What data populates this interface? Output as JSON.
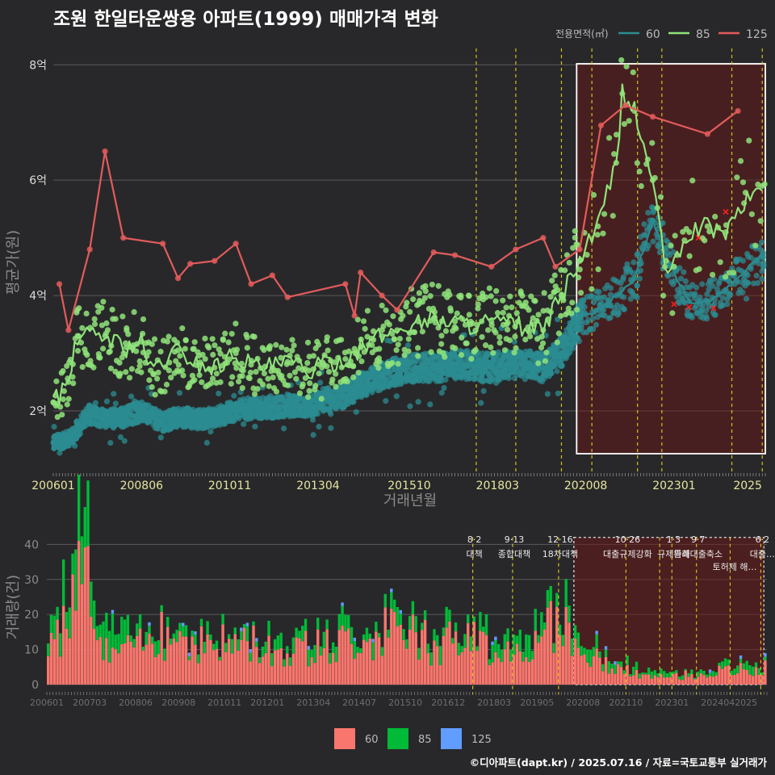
{
  "title": "조원 한일타운쌍용 아파트(1999) 매매가격 변화",
  "footer": "©디아파트(dapt.kr) / 2025.07.16 / 자료=국토교통부 실거래가",
  "colors": {
    "background": "#28282a",
    "s60": "#2b8c91",
    "s85": "#8fe37a",
    "s125": "#e35b5b",
    "vol60": "#f8766d",
    "vol85": "#00ba38",
    "vol125": "#619cff",
    "event_line": "#d4c21e",
    "highlight": "#ffffff"
  },
  "chart_data": [
    {
      "type": "line",
      "title": "조원 한일타운쌍용 아파트(1999) 매매가격 변화",
      "xlabel": "거래년월",
      "ylabel": "평균가(원)",
      "x_ticks": [
        "200601",
        "200806",
        "201011",
        "201304",
        "201510",
        "201803",
        "202008",
        "202301",
        "2025"
      ],
      "y_ticks": [
        "2억",
        "4억",
        "6억",
        "8억"
      ],
      "ylim": [
        0.95,
        8.2
      ],
      "y_unit": "억",
      "legend": {
        "title": "전용면적(㎡)",
        "entries": [
          "60",
          "85",
          "125"
        ],
        "position": "top-right"
      },
      "grid": true,
      "event_lines": [
        "2017-08",
        "2018-09",
        "2019-12",
        "2020-10",
        "2022-01",
        "2022-09",
        "2024-08",
        "2025-06"
      ],
      "highlight_period": [
        "2020-05",
        "2025-07"
      ],
      "series": [
        {
          "name": "60",
          "points": [
            [
              "2006-01",
              1.45
            ],
            [
              "2006-06",
              1.5
            ],
            [
              "2007-01",
              1.95
            ],
            [
              "2007-06",
              1.85
            ],
            [
              "2008-01",
              1.9
            ],
            [
              "2008-06",
              2.0
            ],
            [
              "2009-01",
              1.8
            ],
            [
              "2009-06",
              1.9
            ],
            [
              "2010-01",
              1.85
            ],
            [
              "2010-06",
              1.9
            ],
            [
              "2011-01",
              2.0
            ],
            [
              "2011-06",
              2.05
            ],
            [
              "2012-01",
              2.05
            ],
            [
              "2012-06",
              2.1
            ],
            [
              "2013-01",
              2.05
            ],
            [
              "2013-06",
              2.2
            ],
            [
              "2014-01",
              2.25
            ],
            [
              "2014-06",
              2.45
            ],
            [
              "2015-01",
              2.6
            ],
            [
              "2015-06",
              2.7
            ],
            [
              "2016-01",
              2.75
            ],
            [
              "2016-06",
              2.75
            ],
            [
              "2017-01",
              2.8
            ],
            [
              "2017-06",
              2.8
            ],
            [
              "2018-01",
              2.75
            ],
            [
              "2018-06",
              2.8
            ],
            [
              "2019-01",
              2.8
            ],
            [
              "2019-06",
              2.75
            ],
            [
              "2019-12",
              3.0
            ],
            [
              "2020-06",
              3.6
            ],
            [
              "2020-12",
              3.75
            ],
            [
              "2021-06",
              4.0
            ],
            [
              "2021-12",
              4.3
            ],
            [
              "2022-06",
              5.3
            ],
            [
              "2022-12",
              4.5
            ],
            [
              "2023-06",
              3.9
            ],
            [
              "2023-12",
              3.9
            ],
            [
              "2024-06",
              4.1
            ],
            [
              "2024-12",
              4.4
            ],
            [
              "2025-06",
              4.7
            ]
          ]
        },
        {
          "name": "85",
          "points": [
            [
              "2006-01",
              2.15
            ],
            [
              "2006-06",
              2.5
            ],
            [
              "2006-09",
              3.3
            ],
            [
              "2007-06",
              3.3
            ],
            [
              "2008-01",
              3.1
            ],
            [
              "2008-06",
              3.2
            ],
            [
              "2008-09",
              2.7
            ],
            [
              "2009-06",
              3.05
            ],
            [
              "2010-01",
              2.8
            ],
            [
              "2010-06",
              2.75
            ],
            [
              "2011-01",
              3.0
            ],
            [
              "2011-06",
              2.8
            ],
            [
              "2012-01",
              2.75
            ],
            [
              "2012-06",
              2.85
            ],
            [
              "2013-01",
              2.7
            ],
            [
              "2013-06",
              2.8
            ],
            [
              "2014-01",
              2.9
            ],
            [
              "2014-06",
              3.1
            ],
            [
              "2015-01",
              3.3
            ],
            [
              "2015-06",
              3.4
            ],
            [
              "2016-01",
              3.55
            ],
            [
              "2016-06",
              3.6
            ],
            [
              "2017-01",
              3.55
            ],
            [
              "2017-06",
              3.5
            ],
            [
              "2018-01",
              3.55
            ],
            [
              "2018-06",
              3.5
            ],
            [
              "2019-01",
              3.45
            ],
            [
              "2019-06",
              3.4
            ],
            [
              "2019-12",
              4.0
            ],
            [
              "2020-06",
              4.6
            ],
            [
              "2020-12",
              5.2
            ],
            [
              "2021-06",
              6.3
            ],
            [
              "2021-08",
              7.5
            ],
            [
              "2021-12",
              7.2
            ],
            [
              "2022-06",
              6.0
            ],
            [
              "2022-10",
              4.5
            ],
            [
              "2023-01",
              4.5
            ],
            [
              "2023-06",
              5.1
            ],
            [
              "2023-12",
              5.2
            ],
            [
              "2024-06",
              5.1
            ],
            [
              "2024-12",
              5.6
            ],
            [
              "2025-06",
              5.9
            ]
          ]
        },
        {
          "name": "125",
          "points": [
            [
              "2006-03",
              4.2
            ],
            [
              "2006-06",
              3.4
            ],
            [
              "2007-01",
              4.8
            ],
            [
              "2007-06",
              6.5
            ],
            [
              "2007-12",
              5.0
            ],
            [
              "2009-01",
              4.9
            ],
            [
              "2009-06",
              4.3
            ],
            [
              "2009-10",
              4.55
            ],
            [
              "2010-06",
              4.6
            ],
            [
              "2011-01",
              4.9
            ],
            [
              "2011-06",
              4.2
            ],
            [
              "2012-01",
              4.35
            ],
            [
              "2012-06",
              3.97
            ],
            [
              "2014-01",
              4.2
            ],
            [
              "2014-04",
              3.65
            ],
            [
              "2014-06",
              4.4
            ],
            [
              "2015-01",
              4.0
            ],
            [
              "2015-06",
              3.75
            ],
            [
              "2016-06",
              4.75
            ],
            [
              "2017-01",
              4.7
            ],
            [
              "2018-01",
              4.5
            ],
            [
              "2018-09",
              4.8
            ],
            [
              "2019-06",
              5.0
            ],
            [
              "2019-10",
              4.5
            ],
            [
              "2020-06",
              4.8
            ],
            [
              "2021-01",
              6.95
            ],
            [
              "2021-09",
              7.3
            ],
            [
              "2022-06",
              7.1
            ],
            [
              "2023-12",
              6.8
            ],
            [
              "2024-10",
              7.2
            ]
          ]
        }
      ]
    },
    {
      "type": "bar",
      "stacked": true,
      "xlabel": "",
      "ylabel": "거래량(건)",
      "x_ticks": [
        "200601",
        "200703",
        "200806",
        "200908",
        "201011",
        "201201",
        "201304",
        "201407",
        "201510",
        "201612",
        "201803",
        "201905",
        "202008",
        "202110",
        "202301",
        "202404",
        "2025"
      ],
      "y_ticks": [
        "0",
        "10",
        "20",
        "30",
        "40"
      ],
      "ylim": [
        0,
        44
      ],
      "legend": {
        "entries": [
          "60",
          "85",
          "125"
        ],
        "position": "bottom"
      },
      "events": [
        {
          "date": "2017-08",
          "label": "8·2 대책"
        },
        {
          "date": "2018-09",
          "label": "9·13 종합대책"
        },
        {
          "date": "2019-12",
          "label": "12·16 18차대책"
        },
        {
          "date": "2021-10",
          "label": "10·26 대출규제강화"
        },
        {
          "date": "2023-01",
          "label": "1·3 규제완화"
        },
        {
          "date": "2023-09",
          "label": "9·7 특례대출축소"
        },
        {
          "date": "2025-06",
          "label": "6·2 대출…"
        }
      ],
      "event_extra_labels": [
        "토허제 해…"
      ],
      "series": [
        {
          "name": "60",
          "values_summary": [
            [
              "2006-01",
              8
            ],
            [
              "2006-06",
              20
            ],
            [
              "2006-11",
              41
            ],
            [
              "2007-06",
              10
            ],
            [
              "2008-06",
              11
            ],
            [
              "2009-06",
              16
            ],
            [
              "2010-06",
              12
            ],
            [
              "2011-06",
              13
            ],
            [
              "2012-06",
              10
            ],
            [
              "2013-06",
              11
            ],
            [
              "2014-06",
              14
            ],
            [
              "2015-06",
              17
            ],
            [
              "2016-06",
              12
            ],
            [
              "2017-06",
              13
            ],
            [
              "2018-06",
              11
            ],
            [
              "2019-06",
              12
            ],
            [
              "2019-12",
              22
            ],
            [
              "2020-06",
              10
            ],
            [
              "2021-06",
              5
            ],
            [
              "2022-06",
              2
            ],
            [
              "2023-06",
              3
            ],
            [
              "2024-06",
              4
            ],
            [
              "2025-06",
              5
            ]
          ]
        },
        {
          "name": "85",
          "values_summary": [
            [
              "2006-01",
              3
            ],
            [
              "2006-11",
              15
            ],
            [
              "2008-06",
              3
            ],
            [
              "2010-06",
              3
            ],
            [
              "2012-06",
              3
            ],
            [
              "2014-06",
              4
            ],
            [
              "2016-06",
              4
            ],
            [
              "2018-06",
              4
            ],
            [
              "2019-12",
              7
            ],
            [
              "2021-06",
              2
            ],
            [
              "2023-06",
              1
            ],
            [
              "2025-06",
              2
            ]
          ]
        },
        {
          "name": "125",
          "values_summary": [
            [
              "2006-06",
              1
            ],
            [
              "2009-06",
              1
            ],
            [
              "2014-06",
              1
            ],
            [
              "2018-09",
              1
            ],
            [
              "2021-06",
              1
            ]
          ]
        }
      ]
    }
  ]
}
